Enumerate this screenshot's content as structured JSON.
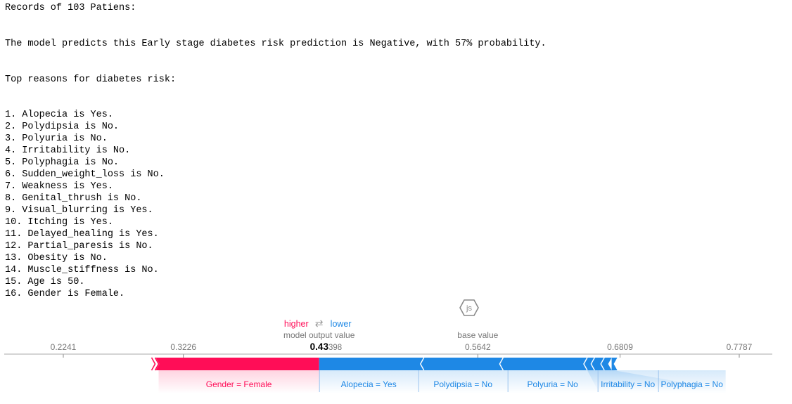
{
  "header": {
    "records_line": "Records of 103 Patiens:",
    "prediction_line": "The model predicts this Early stage diabetes risk prediction is Negative, with 57% probability.",
    "reasons_title": "Top reasons for diabetes risk:"
  },
  "reasons": [
    "1. Alopecia is Yes.",
    "2. Polydipsia is No.",
    "3. Polyuria is No.",
    "4. Irritability is No.",
    "5. Polyphagia is No.",
    "6. Sudden_weight_loss is No.",
    "7. Weakness is Yes.",
    "8. Genital_thrush is No.",
    "9. Visual_blurring is Yes.",
    "10. Itching is Yes.",
    "11. Delayed_healing is Yes.",
    "12. Partial_paresis is No.",
    "13. Obesity is No.",
    "14. Muscle_stiffness is No.",
    "15. Age is 50.",
    "16. Gender is Female."
  ],
  "js_badge": "js",
  "chart_data": {
    "type": "force",
    "legend": {
      "higher": "higher",
      "arrow": "⇄",
      "lower": "lower"
    },
    "output_label": "model output value",
    "output_value_bold": "0.43",
    "output_value_rest": "398",
    "output_value": 0.43398,
    "base_label": "base value",
    "base_value": 0.5642,
    "ticks": [
      0.2241,
      0.3226,
      0.5642,
      0.6809,
      0.7787
    ],
    "tick_labels": [
      "0.2241",
      "0.3226",
      "0.5642",
      "0.6809",
      "0.7787"
    ],
    "xlim": [
      0.2241,
      0.7787
    ],
    "positive_features": [
      {
        "label": "Gender = Female",
        "start": 0.3,
        "end": 0.43398
      }
    ],
    "negative_features": [
      {
        "label": "Alopecia = Yes",
        "start": 0.43398,
        "end": 0.52
      },
      {
        "label": "Polydipsia = No",
        "start": 0.52,
        "end": 0.585
      },
      {
        "label": "Polyuria = No",
        "start": 0.585,
        "end": 0.654
      },
      {
        "label": "Irritability = No",
        "start": 0.654,
        "end": 0.66
      },
      {
        "label": "Polyphagia = No",
        "start": 0.66,
        "end": 0.668
      },
      {
        "label": "",
        "start": 0.668,
        "end": 0.674
      }
    ],
    "colors": {
      "positive": "#ff0d57",
      "negative": "#1e88e5",
      "axis": "#888888"
    }
  }
}
